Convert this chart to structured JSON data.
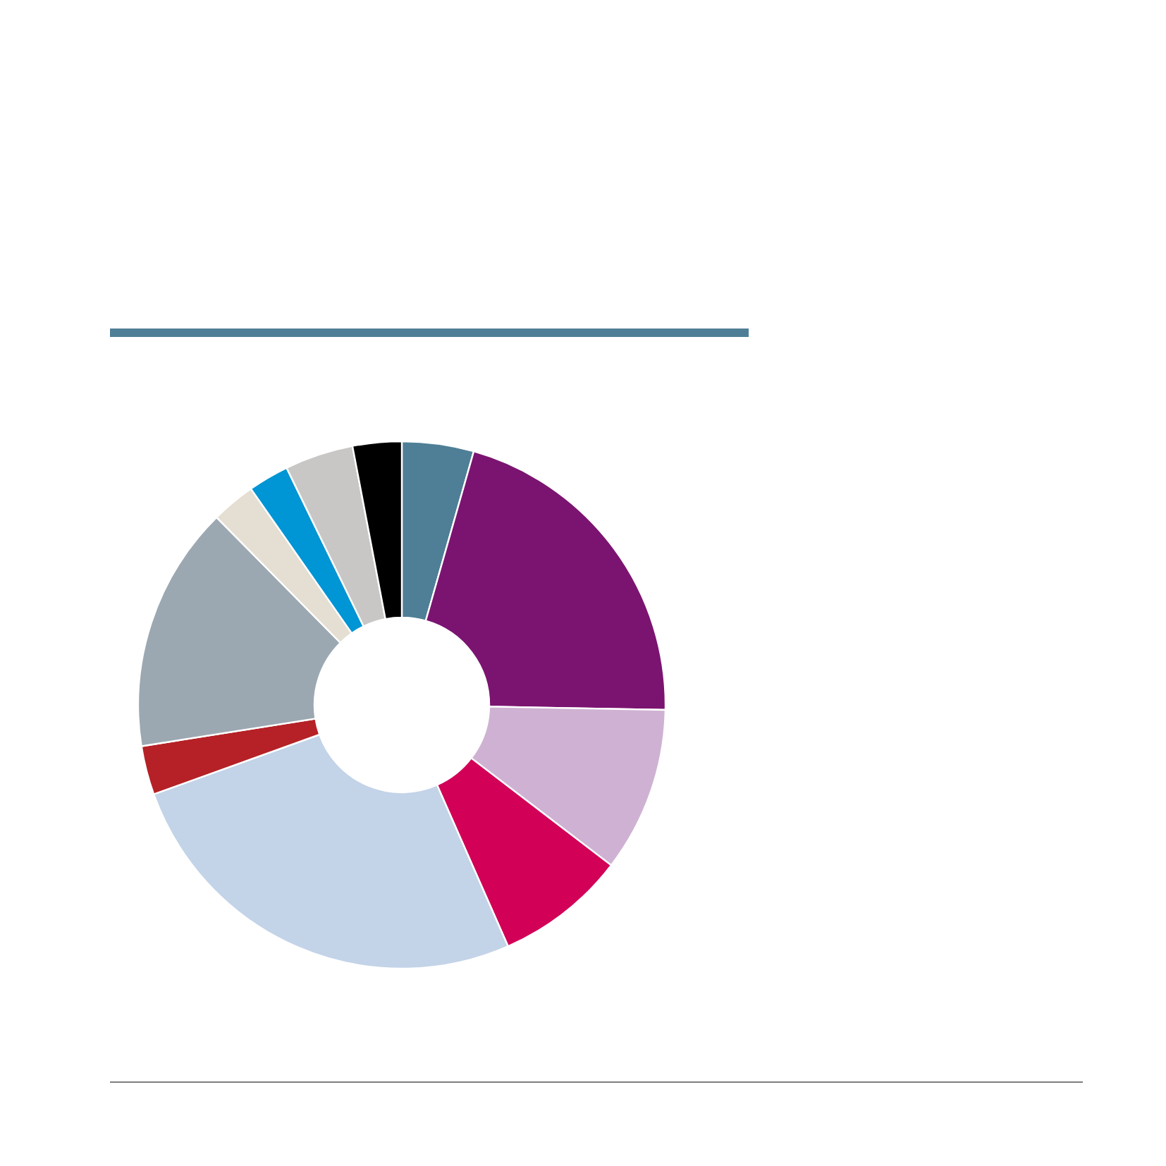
{
  "chart_data": {
    "type": "donut",
    "categories": [
      null,
      null,
      null,
      null,
      null,
      null,
      null,
      null,
      null,
      null,
      null
    ],
    "values": [
      4.4,
      20.9,
      10.1,
      8.0,
      26.1,
      3.0,
      15.1,
      2.7,
      2.5,
      4.2,
      3.0
    ],
    "colors": [
      "#4f7f96",
      "#7b1470",
      "#cfb2d3",
      "#d20057",
      "#c3d3e8",
      "#b52126",
      "#9ca8b1",
      "#e4ded3",
      "#0095d4",
      "#c8c7c6",
      "#000000"
    ]
  }
}
